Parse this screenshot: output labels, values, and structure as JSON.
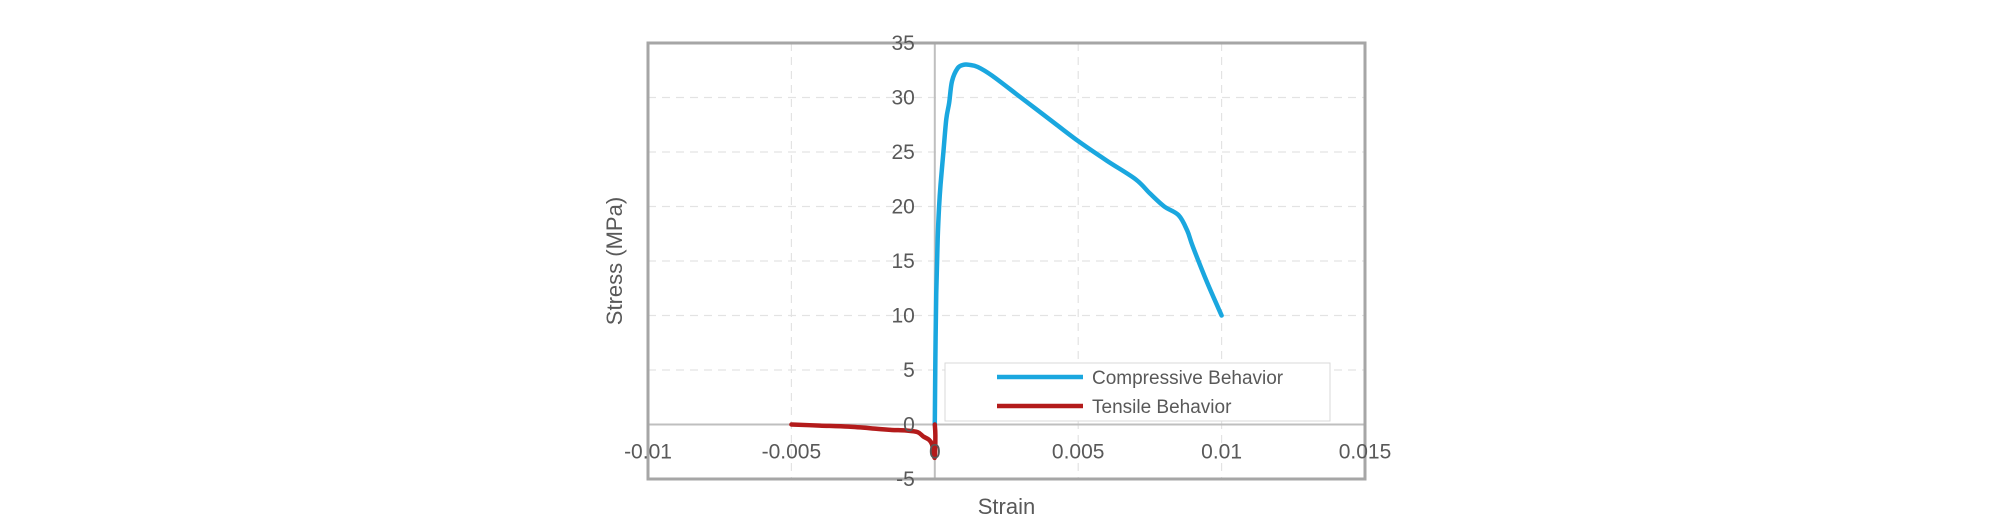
{
  "chart_data": {
    "type": "line",
    "title": "",
    "xlabel": "Strain",
    "ylabel": "Stress (MPa)",
    "xlim": [
      -0.01,
      0.015
    ],
    "ylim": [
      -5,
      35
    ],
    "x_ticks": [
      -0.01,
      -0.005,
      0,
      0.005,
      0.01,
      0.015
    ],
    "x_tick_labels": [
      "-0.01",
      "-0.005",
      "0",
      "0.005",
      "0.01",
      "0.015"
    ],
    "y_ticks": [
      -5,
      0,
      5,
      10,
      15,
      20,
      25,
      30,
      35
    ],
    "y_tick_labels": [
      "-5",
      "0",
      "5",
      "10",
      "15",
      "20",
      "25",
      "30",
      "35"
    ],
    "grid": true,
    "legend_position": "lower-right",
    "series": [
      {
        "name": "Compressive Behavior",
        "color": "#1aa7df",
        "x": [
          0,
          2e-05,
          5e-05,
          0.0001,
          0.00015,
          0.0002,
          0.0003,
          0.0004,
          0.0005,
          0.0006,
          0.0008,
          0.001,
          0.0012,
          0.0015,
          0.002,
          0.003,
          0.004,
          0.005,
          0.006,
          0.007,
          0.0075,
          0.008,
          0.0085,
          0.0088,
          0.009,
          0.0095,
          0.01
        ],
        "y": [
          0,
          6,
          12,
          17,
          20,
          22,
          25,
          28,
          29.5,
          31.5,
          32.7,
          33,
          33,
          32.8,
          32,
          30,
          28,
          26,
          24.2,
          22.5,
          21.2,
          20,
          19.2,
          17.8,
          16.3,
          13,
          10
        ]
      },
      {
        "name": "Tensile Behavior",
        "color": "#b31b1b",
        "x": [
          -0.005,
          -0.004,
          -0.003,
          -0.002,
          -0.0015,
          -0.001,
          -0.0006,
          -0.0004,
          -0.0002,
          -0.0001,
          -5e-05,
          0,
          2e-05,
          0
        ],
        "y": [
          0,
          -0.1,
          -0.2,
          -0.4,
          -0.5,
          -0.55,
          -0.7,
          -1.1,
          -1.4,
          -1.8,
          -2.5,
          -3,
          -1,
          0
        ]
      }
    ]
  }
}
